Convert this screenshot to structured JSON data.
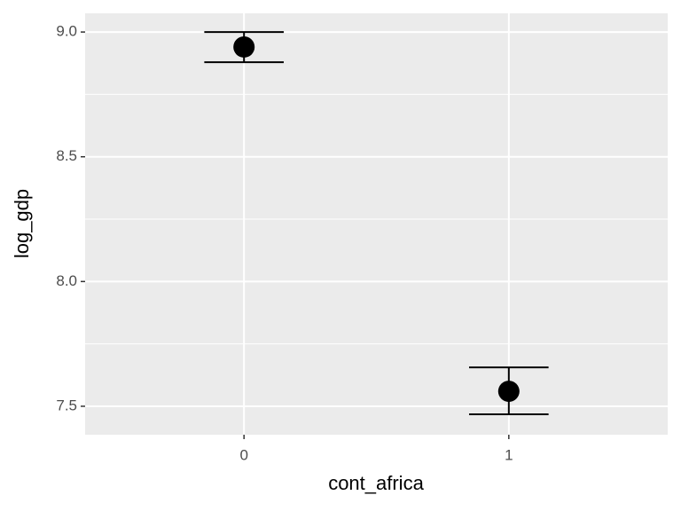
{
  "chart_data": {
    "type": "pointrange",
    "x_label": "cont_africa",
    "y_label": "log_gdp",
    "categories": [
      "0",
      "1"
    ],
    "values": [
      8.94,
      7.56
    ],
    "lower": [
      8.879,
      7.468
    ],
    "upper": [
      9.0,
      7.656
    ],
    "color": "#000000",
    "ylim": [
      7.386,
      9.075
    ],
    "yticks": [
      {
        "value": 7.5,
        "label": "7.5"
      },
      {
        "value": 8.0,
        "label": "8.0"
      },
      {
        "value": 8.5,
        "label": "8.5"
      },
      {
        "value": 9.0,
        "label": "9.0"
      }
    ],
    "yminorticks": [
      7.75,
      8.25,
      8.75
    ],
    "grid": true
  }
}
